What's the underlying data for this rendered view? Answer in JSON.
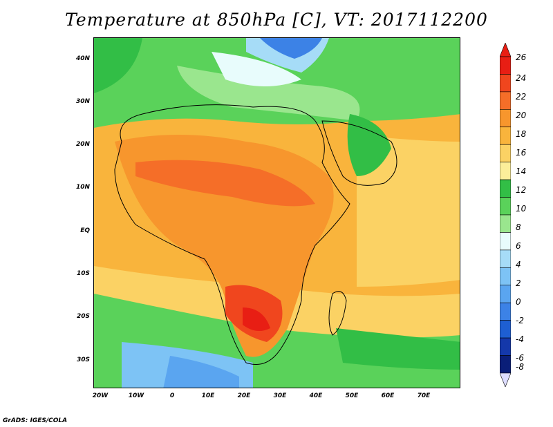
{
  "title": "Temperature at 850hPa [C], VT: 2017112200",
  "credit": "GrADS: IGES/COLA",
  "lat_labels": [
    "40N",
    "30N",
    "20N",
    "10N",
    "EQ",
    "10S",
    "20S",
    "30S"
  ],
  "lon_labels": [
    "20W",
    "10W",
    "0",
    "10E",
    "20E",
    "30E",
    "40E",
    "50E",
    "60E",
    "70E"
  ],
  "colorbar": {
    "labels": [
      "26",
      "24",
      "22",
      "20",
      "18",
      "16",
      "14",
      "12",
      "10",
      "8",
      "6",
      "4",
      "2",
      "0",
      "-2",
      "-4",
      "-6",
      "-8"
    ],
    "colors": [
      "#e81e14",
      "#f0461e",
      "#f56e28",
      "#f7962d",
      "#f9b43c",
      "#fbd264",
      "#fcee9a",
      "#32be46",
      "#5ad25a",
      "#9ae68e",
      "#e8fcfc",
      "#a6dcf7",
      "#7dc3f5",
      "#5aa5f0",
      "#3c82e6",
      "#1e5fd2",
      "#1438aa",
      "#0a1e78"
    ],
    "over_color": "#e81e14",
    "under_color": "#dcdcff"
  }
}
